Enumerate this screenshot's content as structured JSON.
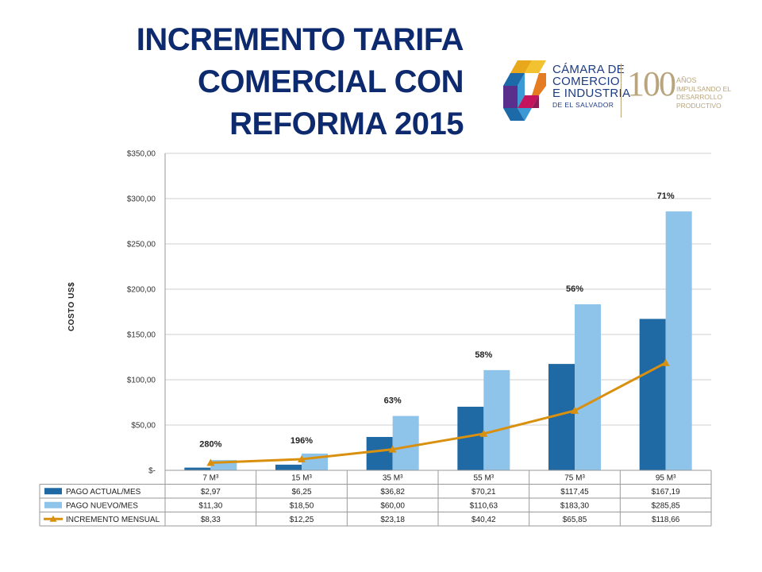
{
  "title": {
    "line1": "INCREMENTO TARIFA",
    "line2": "COMERCIAL CON",
    "line3": "REFORMA 2015"
  },
  "logo": {
    "org_line1": "CÁMARA DE",
    "org_line2": "COMERCIO",
    "org_line3": "E INDUSTRIA",
    "org_line4": "DE EL SALVADOR",
    "anniversary_number": "100",
    "anniversary_line1": "AÑOS",
    "anniversary_line2": "IMPULSANDO EL",
    "anniversary_line3": "DESARROLLO PRODUCTIVO",
    "colors": [
      "#e9a81b",
      "#1c6aa8",
      "#c4145e",
      "#3b9ad6",
      "#5a2e8c"
    ]
  },
  "chart_data": {
    "type": "bar",
    "categories": [
      "7 M³",
      "15 M³",
      "35 M³",
      "55 M³",
      "75 M³",
      "95 M³"
    ],
    "ylabel": "COSTO US$",
    "ylim": [
      0,
      350
    ],
    "yticks": [
      "$-",
      "$50,00",
      "$100,00",
      "$150,00",
      "$200,00",
      "$250,00",
      "$300,00",
      "$350,00"
    ],
    "grid": true,
    "series": [
      {
        "name": "PAGO ACTUAL/MES",
        "kind": "bar",
        "color": "#1f6aa5",
        "values": [
          2.97,
          6.25,
          36.82,
          70.21,
          117.45,
          167.19
        ],
        "labels": [
          "$2,97",
          "$6,25",
          "$36,82",
          "$70,21",
          "$117,45",
          "$167,19"
        ]
      },
      {
        "name": "PAGO NUEVO/MES",
        "kind": "bar",
        "color": "#8ec3ea",
        "values": [
          11.3,
          18.5,
          60.0,
          110.63,
          183.3,
          285.85
        ],
        "labels": [
          "$11,30",
          "$18,50",
          "$60,00",
          "$110,63",
          "$183,30",
          "$285,85"
        ]
      },
      {
        "name": "INCREMENTO MENSUAL",
        "kind": "line",
        "color": "#d9900f",
        "values": [
          8.33,
          12.25,
          23.18,
          40.42,
          65.85,
          118.66
        ],
        "labels": [
          "$8,33",
          "$12,25",
          "$23,18",
          "$40,42",
          "$65,85",
          "$118,66"
        ]
      }
    ],
    "annotations": [
      "280%",
      "196%",
      "63%",
      "58%",
      "56%",
      "71%"
    ],
    "data_table": true
  }
}
